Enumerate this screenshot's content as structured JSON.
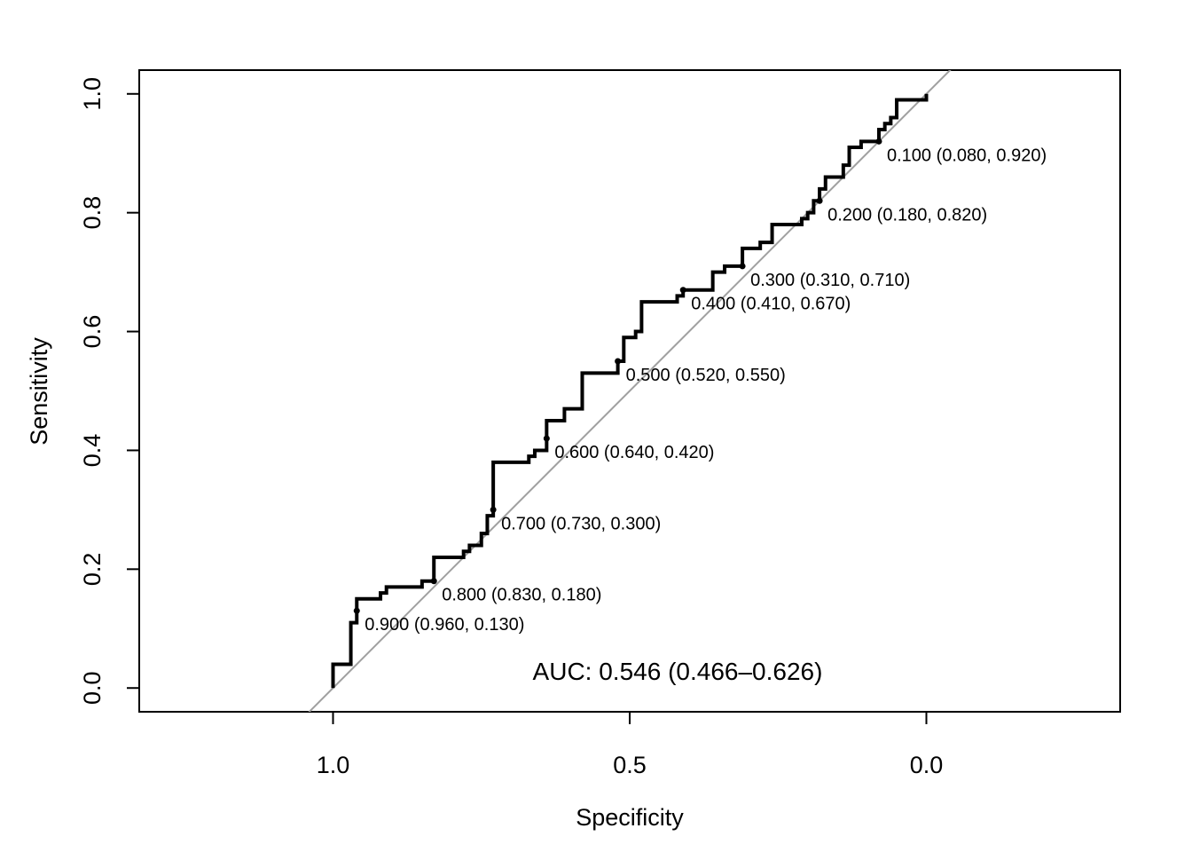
{
  "chart_data": {
    "type": "line",
    "xlabel": "Specificity",
    "ylabel": "Sensitivity",
    "x_reversed": true,
    "xlim": [
      1.3266,
      -0.3266
    ],
    "ylim": [
      -0.04,
      1.04
    ],
    "x_ticks": [
      {
        "value": 1.0,
        "label": "1.0"
      },
      {
        "value": 0.5,
        "label": "0.5"
      },
      {
        "value": 0.0,
        "label": "0.0"
      }
    ],
    "y_ticks": [
      {
        "value": 0.0,
        "label": "0.0"
      },
      {
        "value": 0.2,
        "label": "0.2"
      },
      {
        "value": 0.4,
        "label": "0.4"
      },
      {
        "value": 0.6,
        "label": "0.6"
      },
      {
        "value": 0.8,
        "label": "0.8"
      },
      {
        "value": 1.0,
        "label": "1.0"
      }
    ],
    "auc_text": "AUC: 0.546 (0.466–0.626)",
    "diagonal": {
      "intercept": 1,
      "slope": -1,
      "color": "#a0a0a0"
    },
    "roc_color": "#000000",
    "roc_curve": [
      [
        1.0,
        0.0
      ],
      [
        1.0,
        0.04
      ],
      [
        0.97,
        0.04
      ],
      [
        0.97,
        0.11
      ],
      [
        0.96,
        0.11
      ],
      [
        0.96,
        0.15
      ],
      [
        0.92,
        0.15
      ],
      [
        0.92,
        0.16
      ],
      [
        0.91,
        0.16
      ],
      [
        0.91,
        0.17
      ],
      [
        0.85,
        0.17
      ],
      [
        0.85,
        0.18
      ],
      [
        0.83,
        0.18
      ],
      [
        0.83,
        0.22
      ],
      [
        0.78,
        0.22
      ],
      [
        0.78,
        0.23
      ],
      [
        0.77,
        0.23
      ],
      [
        0.77,
        0.24
      ],
      [
        0.75,
        0.24
      ],
      [
        0.75,
        0.26
      ],
      [
        0.74,
        0.26
      ],
      [
        0.74,
        0.29
      ],
      [
        0.73,
        0.29
      ],
      [
        0.73,
        0.38
      ],
      [
        0.67,
        0.38
      ],
      [
        0.67,
        0.39
      ],
      [
        0.66,
        0.39
      ],
      [
        0.66,
        0.4
      ],
      [
        0.64,
        0.4
      ],
      [
        0.64,
        0.45
      ],
      [
        0.61,
        0.45
      ],
      [
        0.61,
        0.47
      ],
      [
        0.58,
        0.47
      ],
      [
        0.58,
        0.53
      ],
      [
        0.52,
        0.53
      ],
      [
        0.52,
        0.55
      ],
      [
        0.51,
        0.55
      ],
      [
        0.51,
        0.59
      ],
      [
        0.49,
        0.59
      ],
      [
        0.49,
        0.6
      ],
      [
        0.48,
        0.6
      ],
      [
        0.48,
        0.65
      ],
      [
        0.42,
        0.65
      ],
      [
        0.42,
        0.66
      ],
      [
        0.41,
        0.66
      ],
      [
        0.41,
        0.67
      ],
      [
        0.36,
        0.67
      ],
      [
        0.36,
        0.7
      ],
      [
        0.34,
        0.7
      ],
      [
        0.34,
        0.71
      ],
      [
        0.31,
        0.71
      ],
      [
        0.31,
        0.74
      ],
      [
        0.28,
        0.74
      ],
      [
        0.28,
        0.75
      ],
      [
        0.26,
        0.75
      ],
      [
        0.26,
        0.78
      ],
      [
        0.21,
        0.78
      ],
      [
        0.21,
        0.79
      ],
      [
        0.2,
        0.79
      ],
      [
        0.2,
        0.8
      ],
      [
        0.19,
        0.8
      ],
      [
        0.19,
        0.82
      ],
      [
        0.18,
        0.82
      ],
      [
        0.18,
        0.84
      ],
      [
        0.17,
        0.84
      ],
      [
        0.17,
        0.86
      ],
      [
        0.14,
        0.86
      ],
      [
        0.14,
        0.88
      ],
      [
        0.13,
        0.88
      ],
      [
        0.13,
        0.91
      ],
      [
        0.11,
        0.91
      ],
      [
        0.11,
        0.92
      ],
      [
        0.08,
        0.92
      ],
      [
        0.08,
        0.94
      ],
      [
        0.07,
        0.94
      ],
      [
        0.07,
        0.95
      ],
      [
        0.06,
        0.95
      ],
      [
        0.06,
        0.96
      ],
      [
        0.05,
        0.96
      ],
      [
        0.05,
        0.99
      ],
      [
        0.0,
        0.99
      ],
      [
        0.0,
        1.0
      ]
    ],
    "thresholds": [
      {
        "specificity": 0.96,
        "sensitivity": 0.13,
        "label": "0.900 (0.960, 0.130)"
      },
      {
        "specificity": 0.83,
        "sensitivity": 0.18,
        "label": "0.800 (0.830, 0.180)"
      },
      {
        "specificity": 0.73,
        "sensitivity": 0.3,
        "label": "0.700 (0.730, 0.300)"
      },
      {
        "specificity": 0.64,
        "sensitivity": 0.42,
        "label": "0.600 (0.640, 0.420)"
      },
      {
        "specificity": 0.52,
        "sensitivity": 0.55,
        "label": "0.500 (0.520, 0.550)"
      },
      {
        "specificity": 0.41,
        "sensitivity": 0.67,
        "label": "0.400 (0.410, 0.670)"
      },
      {
        "specificity": 0.31,
        "sensitivity": 0.71,
        "label": "0.300 (0.310, 0.710)"
      },
      {
        "specificity": 0.18,
        "sensitivity": 0.82,
        "label": "0.200 (0.180, 0.820)"
      },
      {
        "specificity": 0.08,
        "sensitivity": 0.92,
        "label": "0.100 (0.080, 0.920)"
      }
    ],
    "grid": false,
    "legend": "none"
  }
}
